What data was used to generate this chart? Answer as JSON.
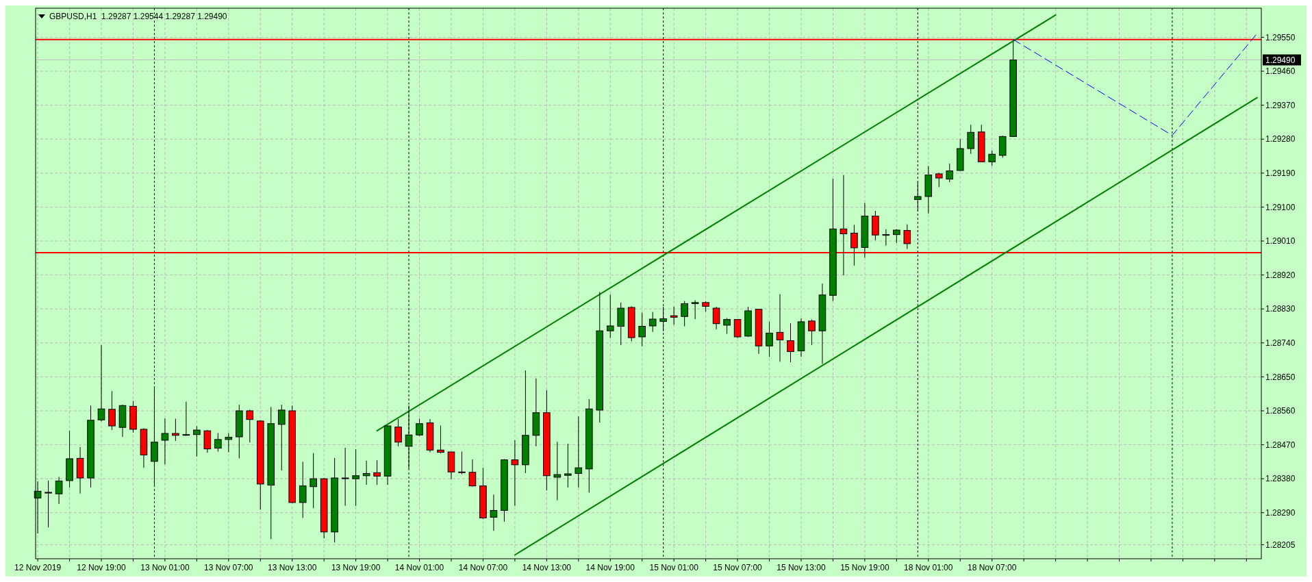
{
  "chart_data": {
    "type": "candlestick",
    "title": "GBPUSD,H1  1.29287 1.29544 1.29287 1.29490",
    "categories": [
      "12 Nov 2019",
      null,
      null,
      null,
      null,
      null,
      "12 Nov 19:00",
      null,
      null,
      null,
      null,
      null,
      "13 Nov 01:00",
      null,
      null,
      null,
      null,
      null,
      "13 Nov 07:00",
      null,
      null,
      null,
      null,
      null,
      "13 Nov 13:00",
      null,
      null,
      null,
      null,
      null,
      "13 Nov 19:00",
      null,
      null,
      null,
      null,
      null,
      "14 Nov 01:00",
      null,
      null,
      null,
      null,
      null,
      "14 Nov 07:00",
      null,
      null,
      null,
      null,
      null,
      "14 Nov 13:00",
      null,
      null,
      null,
      null,
      null,
      "14 Nov 19:00",
      null,
      null,
      null,
      null,
      null,
      "15 Nov 01:00",
      null,
      null,
      null,
      null,
      null,
      "15 Nov 07:00",
      null,
      null,
      null,
      null,
      null,
      "15 Nov 13:00",
      null,
      null,
      null,
      null,
      null,
      "15 Nov 19:00",
      null,
      null,
      null,
      null,
      null,
      "18 Nov 01:00",
      null,
      null,
      null,
      null,
      null,
      "18 Nov 07:00",
      null,
      null,
      null,
      null,
      null,
      null,
      null,
      null,
      null,
      null,
      null,
      null,
      null,
      null,
      null,
      null,
      null,
      null,
      null,
      null,
      null,
      null,
      null,
      null,
      null
    ],
    "ohlc": [
      [
        1.28329,
        1.28373,
        1.28235,
        1.28347
      ],
      [
        1.28344,
        1.28375,
        1.28251,
        1.28342
      ],
      [
        1.2834,
        1.28385,
        1.28313,
        1.28374
      ],
      [
        1.28375,
        1.28507,
        1.28357,
        1.28433
      ],
      [
        1.28434,
        1.28464,
        1.28341,
        1.28382
      ],
      [
        1.28382,
        1.28574,
        1.28357,
        1.28535
      ],
      [
        1.28536,
        1.28734,
        1.28532,
        1.28565
      ],
      [
        1.28564,
        1.28612,
        1.28509,
        1.2852
      ],
      [
        1.28516,
        1.28576,
        1.28491,
        1.28574
      ],
      [
        1.28572,
        1.28586,
        1.28502,
        1.28511
      ],
      [
        1.28511,
        1.28514,
        1.28409,
        1.28443
      ],
      [
        1.28426,
        1.28622,
        1.28364,
        1.28477
      ],
      [
        1.28482,
        1.2854,
        1.28418,
        1.285
      ],
      [
        1.285,
        1.28539,
        1.2848,
        1.28495
      ],
      [
        1.28496,
        1.28584,
        1.28494,
        1.28497
      ],
      [
        1.28497,
        1.28519,
        1.28439,
        1.28509
      ],
      [
        1.28507,
        1.28509,
        1.28449,
        1.28459
      ],
      [
        1.28461,
        1.28501,
        1.28452,
        1.28484
      ],
      [
        1.28484,
        1.28501,
        1.2845,
        1.2849
      ],
      [
        1.28491,
        1.28576,
        1.28434,
        1.2856
      ],
      [
        1.2856,
        1.28563,
        1.28476,
        1.28537
      ],
      [
        1.28533,
        1.28535,
        1.28298,
        1.28366
      ],
      [
        1.28363,
        1.2857,
        1.2822,
        1.28526
      ],
      [
        1.28524,
        1.28576,
        1.28402,
        1.28562
      ],
      [
        1.2856,
        1.28574,
        1.28315,
        1.28317
      ],
      [
        1.28317,
        1.28425,
        1.28276,
        1.28361
      ],
      [
        1.28359,
        1.28448,
        1.28302,
        1.2838
      ],
      [
        1.2838,
        1.28382,
        1.28222,
        1.28239
      ],
      [
        1.28239,
        1.28435,
        1.28211,
        1.28382
      ],
      [
        1.28381,
        1.28462,
        1.28308,
        1.28382
      ],
      [
        1.2838,
        1.28458,
        1.28308,
        1.28388
      ],
      [
        1.28388,
        1.28428,
        1.28364,
        1.28394
      ],
      [
        1.28396,
        1.28429,
        1.28364,
        1.28387
      ],
      [
        1.28387,
        1.28521,
        1.28364,
        1.2852
      ],
      [
        1.28517,
        1.28538,
        1.28466,
        1.28477
      ],
      [
        1.28466,
        1.28574,
        1.28407,
        1.28496
      ],
      [
        1.28496,
        1.28539,
        1.28493,
        1.28526
      ],
      [
        1.28528,
        1.28538,
        1.2845,
        1.28456
      ],
      [
        1.28456,
        1.28521,
        1.28447,
        1.2845
      ],
      [
        1.28451,
        1.28451,
        1.28379,
        1.28398
      ],
      [
        1.28398,
        1.28452,
        1.28392,
        1.28397
      ],
      [
        1.28397,
        1.28431,
        1.28359,
        1.28361
      ],
      [
        1.28361,
        1.28409,
        1.28273,
        1.28276
      ],
      [
        1.28278,
        1.28338,
        1.28242,
        1.28296
      ],
      [
        1.28296,
        1.28432,
        1.28266,
        1.2843
      ],
      [
        1.2843,
        1.28482,
        1.28308,
        1.28417
      ],
      [
        1.28417,
        1.28667,
        1.28395,
        1.28495
      ],
      [
        1.28495,
        1.28646,
        1.28466,
        1.28555
      ],
      [
        1.28555,
        1.28615,
        1.28349,
        1.28388
      ],
      [
        1.28384,
        1.28478,
        1.28323,
        1.28391
      ],
      [
        1.28389,
        1.28473,
        1.28357,
        1.28393
      ],
      [
        1.28394,
        1.28545,
        1.28357,
        1.28409
      ],
      [
        1.28406,
        1.28591,
        1.28343,
        1.28565
      ],
      [
        1.28562,
        1.28875,
        1.28529,
        1.28772
      ],
      [
        1.28772,
        1.28868,
        1.28753,
        1.28785
      ],
      [
        1.28784,
        1.28847,
        1.28734,
        1.28832
      ],
      [
        1.28834,
        1.28837,
        1.28744,
        1.28754
      ],
      [
        1.28756,
        1.2882,
        1.28731,
        1.28784
      ],
      [
        1.28785,
        1.28822,
        1.28769,
        1.28803
      ],
      [
        1.28797,
        1.28836,
        1.28771,
        1.28804
      ],
      [
        1.28812,
        1.28836,
        1.28788,
        1.28808
      ],
      [
        1.2881,
        1.28851,
        1.28784,
        1.28844
      ],
      [
        1.28844,
        1.28853,
        1.28803,
        1.28847
      ],
      [
        1.28847,
        1.2885,
        1.28823,
        1.28837
      ],
      [
        1.28832,
        1.28836,
        1.28776,
        1.28791
      ],
      [
        1.28787,
        1.28806,
        1.28764,
        1.28802
      ],
      [
        1.28802,
        1.28802,
        1.28753,
        1.28756
      ],
      [
        1.28758,
        1.28836,
        1.28756,
        1.28825
      ],
      [
        1.28829,
        1.2883,
        1.28711,
        1.28732
      ],
      [
        1.28732,
        1.28796,
        1.28703,
        1.28766
      ],
      [
        1.28768,
        1.28869,
        1.2869,
        1.28748
      ],
      [
        1.28746,
        1.28792,
        1.28689,
        1.28717
      ],
      [
        1.28719,
        1.28805,
        1.28703,
        1.28796
      ],
      [
        1.28798,
        1.28802,
        1.28734,
        1.28772
      ],
      [
        1.28772,
        1.28897,
        1.28684,
        1.28867
      ],
      [
        1.28866,
        1.29175,
        1.28851,
        1.29042
      ],
      [
        1.29042,
        1.29185,
        1.28919,
        1.29029
      ],
      [
        1.29031,
        1.29053,
        1.28945,
        1.28992
      ],
      [
        1.28993,
        1.29111,
        1.28966,
        1.29076
      ],
      [
        1.29076,
        1.2909,
        1.29012,
        1.29026
      ],
      [
        1.29026,
        1.29041,
        1.28998,
        1.29027
      ],
      [
        1.29027,
        1.29041,
        1.29005,
        1.29039
      ],
      [
        1.29038,
        1.29054,
        1.28989,
        1.29003
      ],
      [
        1.2912,
        1.29166,
        1.29089,
        1.29128
      ],
      [
        1.29128,
        1.29209,
        1.29083,
        1.29185
      ],
      [
        1.29188,
        1.29191,
        1.29153,
        1.29177
      ],
      [
        1.29174,
        1.29215,
        1.29166,
        1.29196
      ],
      [
        1.29197,
        1.2928,
        1.29196,
        1.29255
      ],
      [
        1.29255,
        1.29318,
        1.29241,
        1.29298
      ],
      [
        1.29299,
        1.29318,
        1.2922,
        1.2922
      ],
      [
        1.2922,
        1.2925,
        1.29209,
        1.2924
      ],
      [
        1.29237,
        1.29289,
        1.29231,
        1.29287
      ],
      [
        1.29287,
        1.29544,
        1.29287,
        1.2949
      ],
      null,
      null,
      null,
      null,
      null,
      null,
      null,
      null,
      null,
      null,
      null,
      null,
      null,
      null,
      null,
      null,
      null,
      null,
      null,
      null,
      null,
      null,
      null
    ],
    "colors": [
      "#008000",
      "#ff0000",
      "#008000",
      "#008000",
      "#ff0000",
      "#008000",
      "#008000",
      "#ff0000",
      "#008000",
      "#ff0000",
      "#ff0000",
      "#008000",
      "#008000",
      "#ff0000",
      "#008000",
      "#008000",
      "#ff0000",
      "#008000",
      "#008000",
      "#008000",
      "#ff0000",
      "#ff0000",
      "#008000",
      "#008000",
      "#ff0000",
      "#008000",
      "#008000",
      "#ff0000",
      "#008000",
      "#008000",
      "#008000",
      "#008000",
      "#ff0000",
      "#008000",
      "#ff0000",
      "#008000",
      "#008000",
      "#ff0000",
      "#ff0000",
      "#ff0000",
      "#ff0000",
      "#ff0000",
      "#ff0000",
      "#008000",
      "#008000",
      "#ff0000",
      "#008000",
      "#008000",
      "#ff0000",
      "#008000",
      "#008000",
      "#008000",
      "#008000",
      "#008000",
      "#008000",
      "#008000",
      "#ff0000",
      "#008000",
      "#008000",
      "#008000",
      "#ff0000",
      "#008000",
      "#008000",
      "#ff0000",
      "#ff0000",
      "#008000",
      "#ff0000",
      "#008000",
      "#ff0000",
      "#008000",
      "#ff0000",
      "#ff0000",
      "#008000",
      "#ff0000",
      "#008000",
      "#008000",
      "#ff0000",
      "#ff0000",
      "#008000",
      "#ff0000",
      "#008000",
      "#008000",
      "#ff0000",
      "#008000",
      "#008000",
      "#ff0000",
      "#008000",
      "#008000",
      "#008000",
      "#ff0000",
      "#008000",
      "#008000",
      "#008000",
      null,
      null,
      null,
      null,
      null,
      null,
      null,
      null,
      null,
      null,
      null,
      null,
      null,
      null,
      null,
      null,
      null,
      null,
      null,
      null,
      null,
      null,
      null
    ],
    "series": [
      {
        "type": "line",
        "color": "#008000",
        "values": [
          null,
          null,
          null,
          null,
          null,
          null,
          null,
          null,
          null,
          null,
          null,
          null,
          null,
          null,
          null,
          null,
          null,
          null,
          null,
          null,
          null,
          null,
          null,
          null,
          null,
          null,
          null,
          null,
          null,
          null,
          null,
          null,
          1.28507,
          null,
          null,
          null,
          null,
          null,
          null,
          null,
          null,
          null,
          null,
          null,
          null,
          null,
          null,
          null,
          null,
          null,
          null,
          null,
          null,
          null,
          null,
          null,
          null,
          null,
          null,
          null,
          null,
          null,
          null,
          null,
          null,
          null,
          null,
          null,
          null,
          null,
          null,
          null,
          null,
          null,
          null,
          null,
          null,
          null,
          null,
          null,
          null,
          null,
          null,
          null,
          null,
          null,
          null,
          null,
          null,
          null,
          null,
          null,
          null,
          null,
          null,
          null,
          1.29609,
          null,
          null,
          null,
          null,
          null,
          null,
          null,
          null,
          null,
          null,
          null,
          null,
          null,
          null,
          null,
          null,
          null,
          null,
          null
        ]
      },
      {
        "type": "line",
        "color": "#008000",
        "values": [
          null,
          null,
          null,
          null,
          null,
          null,
          null,
          null,
          null,
          null,
          null,
          null,
          null,
          null,
          null,
          null,
          null,
          null,
          null,
          null,
          null,
          null,
          null,
          null,
          null,
          null,
          null,
          null,
          null,
          null,
          null,
          null,
          null,
          null,
          null,
          null,
          null,
          null,
          null,
          null,
          null,
          null,
          null,
          null,
          null,
          1.28178,
          null,
          null,
          null,
          null,
          null,
          null,
          null,
          null,
          null,
          null,
          null,
          null,
          null,
          null,
          null,
          null,
          null,
          null,
          null,
          null,
          null,
          null,
          null,
          null,
          null,
          null,
          null,
          null,
          null,
          null,
          null,
          null,
          null,
          null,
          null,
          null,
          null,
          null,
          null,
          null,
          null,
          null,
          null,
          null,
          null,
          null,
          null,
          null,
          null,
          null,
          null,
          null,
          null,
          null,
          null,
          null,
          null,
          null,
          null,
          null,
          null,
          null,
          null,
          null,
          null,
          null,
          null,
          null,
          null,
          1.2939
        ]
      },
      {
        "type": "line",
        "color": "#0000ff",
        "line_style": "dashed",
        "values": [
          null,
          null,
          null,
          null,
          null,
          null,
          null,
          null,
          null,
          null,
          null,
          null,
          null,
          null,
          null,
          null,
          null,
          null,
          null,
          null,
          null,
          null,
          null,
          null,
          null,
          null,
          null,
          null,
          null,
          null,
          null,
          null,
          null,
          null,
          null,
          null,
          null,
          null,
          null,
          null,
          null,
          null,
          null,
          null,
          null,
          null,
          null,
          null,
          null,
          null,
          null,
          null,
          null,
          null,
          null,
          null,
          null,
          null,
          null,
          null,
          null,
          null,
          null,
          null,
          null,
          null,
          null,
          null,
          null,
          null,
          null,
          null,
          null,
          null,
          null,
          null,
          null,
          null,
          null,
          null,
          null,
          null,
          null,
          null,
          null,
          null,
          null,
          null,
          null,
          null,
          null,
          null,
          1.29544,
          null,
          null,
          null,
          null,
          null,
          null,
          null,
          null,
          null,
          null,
          null,
          null,
          null,
          null,
          1.2929,
          null,
          null,
          null,
          null,
          null,
          null,
          null,
          1.2956
        ]
      }
    ],
    "ref_lines": [
      {
        "axis": "y",
        "value": 1.29544,
        "color": "#ff0000"
      },
      {
        "axis": "y",
        "value": 1.28979,
        "color": "#ff0000"
      },
      {
        "axis": "y",
        "value": 1.2949,
        "label": "1.29490",
        "color": "#c0c0c0"
      }
    ],
    "ylim": [
      1.28168,
      1.29627
    ],
    "yticks": [
      1.28205,
      {
        "value": 1.2829,
        "label": "1.28290"
      },
      {
        "value": 1.2838,
        "label": "1.28380"
      },
      {
        "value": 1.2847,
        "label": "1.28470"
      },
      {
        "value": 1.2856,
        "label": "1.28560"
      },
      {
        "value": 1.2865,
        "label": "1.28650"
      },
      {
        "value": 1.2874,
        "label": "1.28740"
      },
      {
        "value": 1.2883,
        "label": "1.28830"
      },
      {
        "value": 1.2892,
        "label": "1.28920"
      },
      {
        "value": 1.2901,
        "label": "1.29010"
      },
      {
        "value": 1.291,
        "label": "1.29100"
      },
      {
        "value": 1.2919,
        "label": "1.29190"
      },
      {
        "value": 1.2928,
        "label": "1.29280"
      },
      {
        "value": 1.2937,
        "label": "1.29370"
      },
      {
        "value": 1.2946,
        "label": "1.29460"
      },
      {
        "value": 1.2955,
        "label": "1.29550"
      }
    ],
    "grid": true,
    "marker": "none"
  }
}
